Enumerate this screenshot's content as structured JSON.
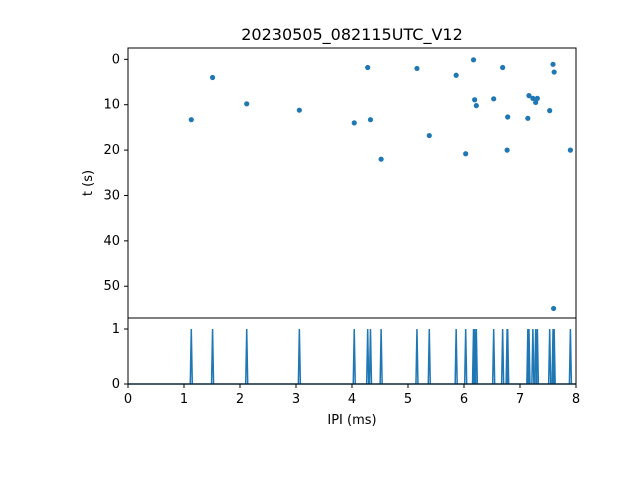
{
  "chart_data": [
    {
      "type": "scatter",
      "title": "20230505_082115UTC_V12",
      "xlabel": "",
      "ylabel": "t (s)",
      "xlim": [
        0,
        8
      ],
      "ylim": [
        57,
        -2.5
      ],
      "y_inverted": true,
      "yticks": [
        0,
        10,
        20,
        30,
        40,
        50
      ],
      "grid": false,
      "color": "#1f77b4",
      "points": [
        {
          "x": 1.13,
          "y": 13.3
        },
        {
          "x": 1.51,
          "y": 4.0
        },
        {
          "x": 2.12,
          "y": 9.8
        },
        {
          "x": 3.06,
          "y": 11.2
        },
        {
          "x": 4.04,
          "y": 14.0
        },
        {
          "x": 4.28,
          "y": 1.8
        },
        {
          "x": 4.33,
          "y": 13.3
        },
        {
          "x": 4.52,
          "y": 22.0
        },
        {
          "x": 5.16,
          "y": 2.0
        },
        {
          "x": 5.38,
          "y": 16.8
        },
        {
          "x": 5.86,
          "y": 3.5
        },
        {
          "x": 6.03,
          "y": 20.8
        },
        {
          "x": 6.17,
          "y": 0.1
        },
        {
          "x": 6.19,
          "y": 8.9
        },
        {
          "x": 6.22,
          "y": 10.2
        },
        {
          "x": 6.53,
          "y": 8.7
        },
        {
          "x": 6.69,
          "y": 1.8
        },
        {
          "x": 6.77,
          "y": 20.0
        },
        {
          "x": 6.78,
          "y": 12.7
        },
        {
          "x": 7.14,
          "y": 13.0
        },
        {
          "x": 7.16,
          "y": 8.0
        },
        {
          "x": 7.23,
          "y": 8.6
        },
        {
          "x": 7.28,
          "y": 9.5
        },
        {
          "x": 7.31,
          "y": 8.6
        },
        {
          "x": 7.53,
          "y": 11.3
        },
        {
          "x": 7.59,
          "y": 1.1
        },
        {
          "x": 7.61,
          "y": 2.8
        },
        {
          "x": 7.6,
          "y": 54.9
        },
        {
          "x": 7.9,
          "y": 20.0
        }
      ]
    },
    {
      "type": "line",
      "xlabel": "IPI (ms)",
      "ylabel": "",
      "xlim": [
        0,
        8
      ],
      "ylim": [
        0,
        1.2
      ],
      "xticks": [
        0,
        1,
        2,
        3,
        4,
        5,
        6,
        7,
        8
      ],
      "yticks": [
        0,
        1
      ],
      "grid": false,
      "color": "#1f77b4",
      "spikes": [
        1.13,
        1.51,
        2.12,
        3.06,
        4.04,
        4.28,
        4.33,
        4.52,
        5.16,
        5.38,
        5.86,
        6.03,
        6.17,
        6.19,
        6.22,
        6.53,
        6.69,
        6.77,
        6.78,
        7.14,
        7.16,
        7.23,
        7.28,
        7.31,
        7.53,
        7.59,
        7.6,
        7.61,
        7.9
      ]
    }
  ]
}
